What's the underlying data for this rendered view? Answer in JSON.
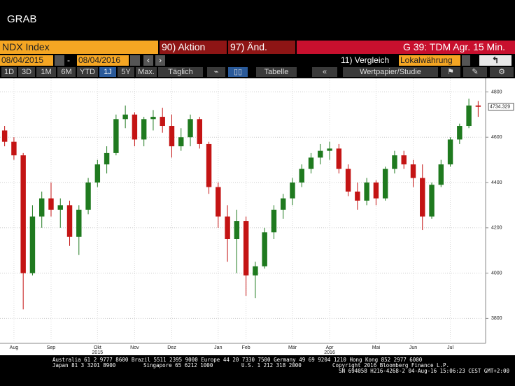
{
  "ui": {
    "window_title": "GRAB",
    "security": "NDX Index",
    "actions": [
      "90) Aktion",
      "97) Änd."
    ],
    "chart_title": "G 39: TDM Agr. 15 Min.",
    "start_date": "08/04/2015",
    "date_separator": "-",
    "end_date": "08/04/2016",
    "compare": "11) Vergleich",
    "currency": "Lokalwährung",
    "periods": [
      "1D",
      "3D",
      "1M",
      "6M",
      "YTD",
      "1J",
      "5Y",
      "Max."
    ],
    "frequency": "Täglich",
    "table": "Tabelle",
    "security_study": "Wertpapier/Studie",
    "contacts_line1": "Australia 61 2 9777 8600 Brazil 5511 2395 9000 Europe 44 20 7330 7500 Germany 49 69 9204 1210 Hong Kong 852 2977 6000",
    "contacts_line2": [
      "Japan 81 3 3201 8900",
      "Singapore 65 6212 1000",
      "U.S. 1 212 318 2000"
    ],
    "copyright": "Copyright 2016 Bloomberg Finance L.P.",
    "session": "SN 694058 H216-4268-2 04-Aug-16 15:06:23 CEST GMT+2:00"
  },
  "chart_data": {
    "type": "candlestick",
    "categories": [
      null,
      "Aug",
      null,
      null,
      null,
      "Sep",
      null,
      null,
      null,
      null,
      "Okt",
      null,
      null,
      null,
      "Nov",
      null,
      null,
      null,
      "Dez",
      null,
      null,
      null,
      null,
      "Jan",
      null,
      null,
      "Feb",
      null,
      null,
      null,
      null,
      "Mär",
      null,
      null,
      null,
      "Apr",
      null,
      null,
      null,
      null,
      "Mai",
      null,
      null,
      null,
      "Jun",
      null,
      null,
      null,
      "Jul",
      null,
      null,
      null
    ],
    "category_years": [
      null,
      null,
      null,
      null,
      null,
      null,
      null,
      null,
      null,
      null,
      "2015",
      null,
      null,
      null,
      null,
      null,
      null,
      null,
      null,
      null,
      null,
      null,
      null,
      null,
      null,
      null,
      null,
      null,
      null,
      null,
      null,
      null,
      null,
      null,
      null,
      "2016",
      null,
      null,
      null,
      null,
      null,
      null,
      null,
      null,
      null,
      null,
      null,
      null,
      null,
      null,
      null,
      null
    ],
    "open": [
      4630,
      4580,
      4520,
      4000,
      4250,
      4330,
      4280,
      4300,
      4160,
      4280,
      4400,
      4480,
      4530,
      4680,
      4700,
      4590,
      4680,
      4690,
      4650,
      4560,
      4600,
      4680,
      4570,
      4380,
      4250,
      4150,
      4230,
      3990,
      4030,
      4180,
      4280,
      4330,
      4400,
      4460,
      4510,
      4540,
      4550,
      4460,
      4360,
      4320,
      4400,
      4330,
      4460,
      4520,
      4480,
      4420,
      4250,
      4390,
      4480,
      4590,
      4650,
      4740
    ],
    "high": [
      4650,
      4600,
      4530,
      4300,
      4360,
      4400,
      4330,
      4320,
      4300,
      4420,
      4500,
      4560,
      4700,
      4740,
      4710,
      4690,
      4720,
      4730,
      4700,
      4640,
      4700,
      4690,
      4580,
      4400,
      4300,
      4280,
      4250,
      4050,
      4200,
      4300,
      4350,
      4420,
      4480,
      4530,
      4570,
      4580,
      4570,
      4480,
      4400,
      4420,
      4410,
      4470,
      4540,
      4540,
      4500,
      4480,
      4400,
      4500,
      4600,
      4660,
      4770,
      4760
    ],
    "low": [
      4560,
      4500,
      3840,
      3990,
      4200,
      4250,
      4200,
      4120,
      4080,
      4260,
      4380,
      4440,
      4520,
      4640,
      4560,
      4560,
      4630,
      4620,
      4510,
      4540,
      4560,
      4550,
      4350,
      4200,
      4050,
      4000,
      3900,
      3890,
      4020,
      4150,
      4240,
      4300,
      4380,
      4440,
      4480,
      4500,
      4440,
      4340,
      4280,
      4300,
      4300,
      4320,
      4440,
      4460,
      4380,
      4190,
      4240,
      4380,
      4470,
      4570,
      4640,
      4690
    ],
    "close": [
      4580,
      4520,
      4000,
      4250,
      4330,
      4280,
      4300,
      4160,
      4280,
      4400,
      4480,
      4530,
      4680,
      4700,
      4590,
      4680,
      4690,
      4650,
      4560,
      4600,
      4680,
      4570,
      4380,
      4250,
      4150,
      4230,
      3990,
      4030,
      4180,
      4280,
      4330,
      4400,
      4460,
      4510,
      4540,
      4550,
      4460,
      4360,
      4320,
      4400,
      4330,
      4460,
      4520,
      4480,
      4420,
      4250,
      4390,
      4480,
      4590,
      4650,
      4740,
      4734.329
    ],
    "last_value": 4734.329,
    "up_color": "#1f7a1f",
    "down_color": "#c41414",
    "ylim": [
      3690,
      4860
    ],
    "yticks": [
      3800,
      4000,
      4200,
      4400,
      4600,
      4800
    ],
    "grid": true
  }
}
